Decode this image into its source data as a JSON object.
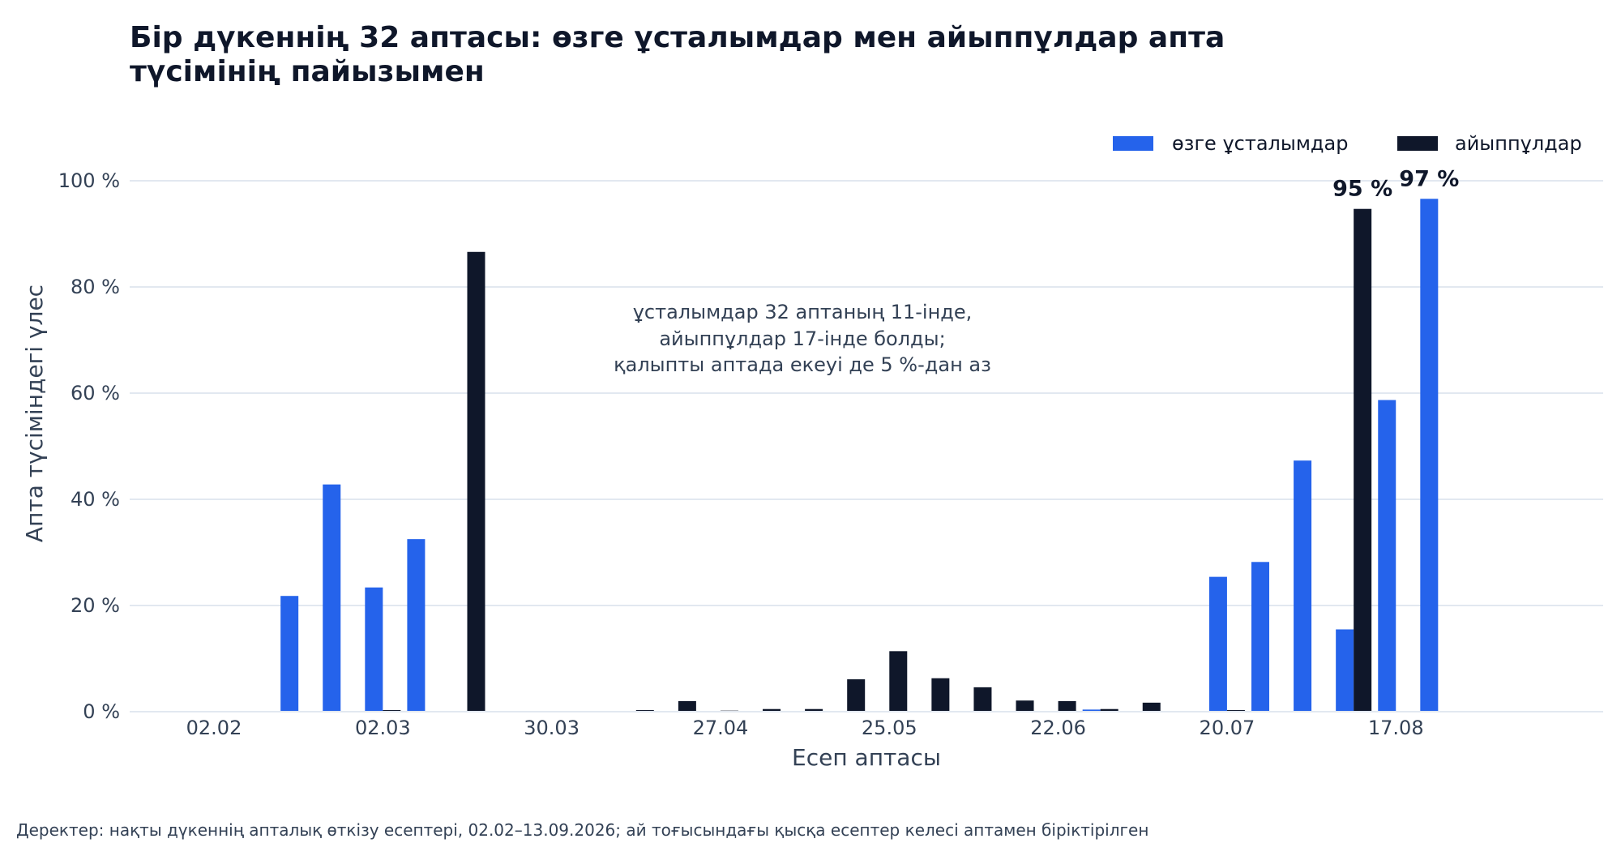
{
  "chart_data": {
    "type": "bar",
    "title_lines": [
      "Бір дүкеннің 32 аптасы: өзге ұсталымдар мен айыппұлдар апта",
      "түсімінің пайызымен"
    ],
    "xlabel": "Есеп аптасы",
    "ylabel": "Апта түсіміндегі үлес",
    "x_tick_labels": [
      "02.02",
      "02.03",
      "30.03",
      "27.04",
      "25.05",
      "22.06",
      "20.07",
      "17.08"
    ],
    "y_tick_labels": [
      "0 %",
      "20 %",
      "40 %",
      "60 %",
      "80 %",
      "100 %"
    ],
    "ylim": [
      0,
      100
    ],
    "y_ticks": [
      0,
      20,
      40,
      60,
      80,
      100
    ],
    "grid": "horizontal",
    "legend_position": "top-right",
    "categories": [
      "02.02",
      "09.02",
      "16.02",
      "23.02",
      "02.03",
      "09.03",
      "16.03",
      "23.03",
      "30.03",
      "06.04",
      "13.04",
      "20.04",
      "27.04",
      "04.05",
      "11.05",
      "18.05",
      "25.05",
      "01.06",
      "08.06",
      "15.06",
      "22.06",
      "29.06",
      "06.07",
      "13.07",
      "20.07",
      "27.07",
      "03.08",
      "10.08",
      "17.08",
      "24.08",
      "31.08",
      "07.09"
    ],
    "series": [
      {
        "name": "өзге ұсталымдар",
        "color": "#2563eb",
        "values": [
          0,
          0,
          21.8,
          42.8,
          23.4,
          32.5,
          0,
          0,
          0,
          0,
          0,
          0,
          0,
          0,
          0,
          0,
          0,
          0,
          0,
          0,
          0,
          0.4,
          0,
          0,
          25.4,
          28.2,
          47.3,
          15.5,
          58.7,
          96.6,
          0,
          0
        ]
      },
      {
        "name": "айыппұлдар",
        "color": "#0f172a",
        "values": [
          0,
          0,
          0,
          0,
          0.3,
          0,
          86.6,
          0,
          0,
          0,
          0.3,
          2.0,
          0.2,
          0.5,
          0.5,
          6.1,
          11.4,
          6.3,
          4.6,
          2.1,
          2.0,
          0.5,
          1.7,
          0,
          0.3,
          0,
          0,
          94.7,
          0,
          0,
          0,
          0
        ]
      }
    ],
    "value_labels": [
      "95 %",
      "97 %"
    ],
    "annotation_lines": [
      "ұсталымдар 32 аптаның 11-інде,",
      "айыппұлдар 17-інде болды;",
      "қалыпты аптада екеуі де 5 %-дан аз"
    ],
    "footnote": "Деректер: нақты дүкеннің апталық өткізу есептері, 02.02–13.09.2026; ай тоғысындағы қысқа есептер келесі аптамен біріктірілген"
  }
}
